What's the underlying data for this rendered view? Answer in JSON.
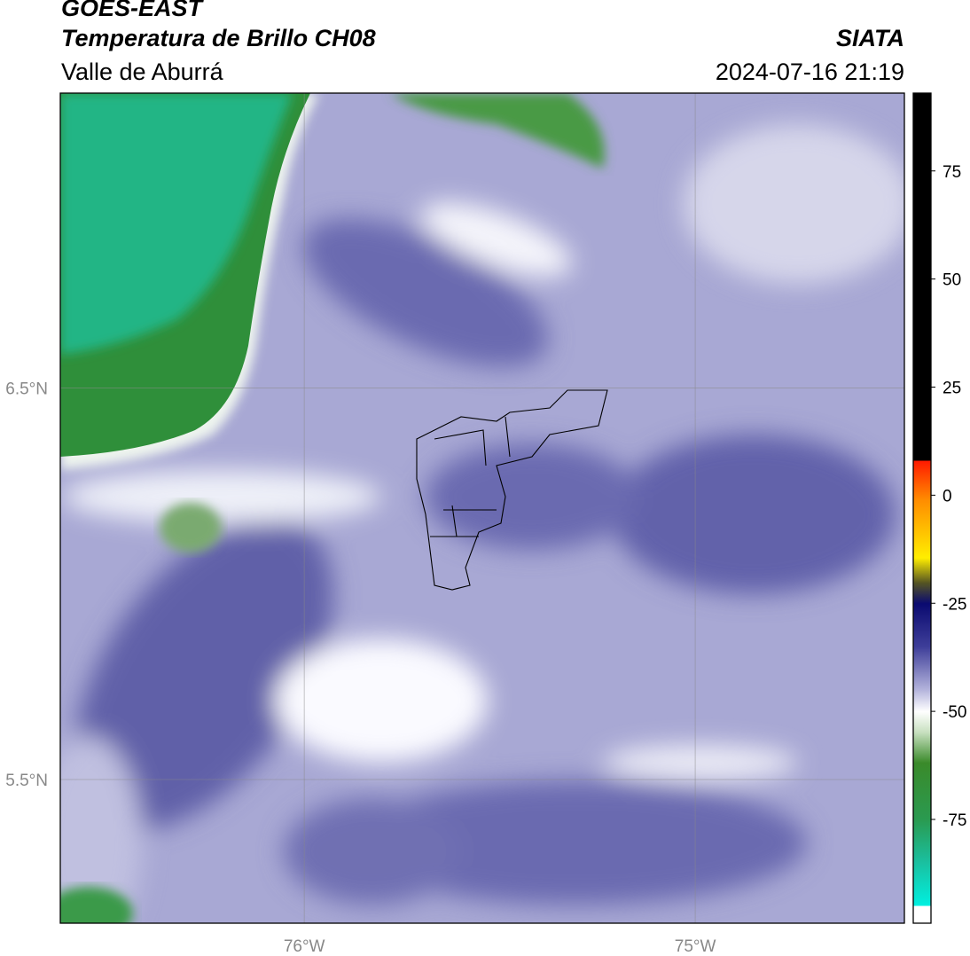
{
  "header": {
    "title": "GOES-EAST",
    "subtitle": "Temperatura de Brillo CH08",
    "region": "Valle de Aburrá",
    "source": "SIATA",
    "datetime": "2024-07-16 21:19"
  },
  "map": {
    "xlim": [
      -76.624,
      -74.465
    ],
    "ylim": [
      5.133,
      7.253
    ],
    "lat_ticks": [
      {
        "value": 6.5,
        "label": "6.5°N"
      },
      {
        "value": 5.5,
        "label": "5.5°N"
      }
    ],
    "lon_ticks": [
      {
        "value": -76,
        "label": "76°W"
      },
      {
        "value": -75,
        "label": "75°W"
      }
    ],
    "grid": true
  },
  "colorbar": {
    "lim": [
      -99,
      93
    ],
    "ticks": [
      75,
      50,
      25,
      0,
      -25,
      -50,
      -75
    ]
  }
}
